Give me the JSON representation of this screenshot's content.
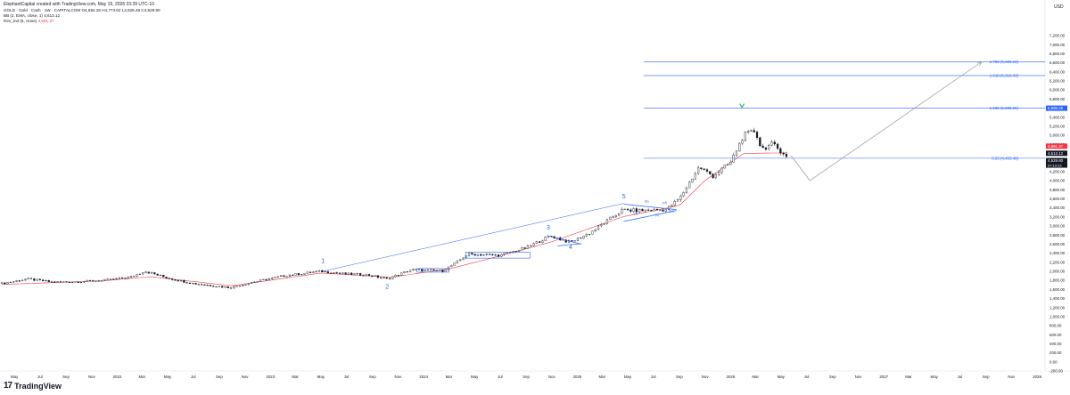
{
  "attribution": "ElephantCapital created with TradingView.com, May 19, 2026 23:39 UTC-10",
  "legend": {
    "symbol_line": "GOLD · Gold · Cash · 1W · CAPITALCOM",
    "ohlc": "O4,684.26 H4,773.62 L4,526.46 C4,529.80",
    "bb_label": "BB (2, EMA, close, 1)",
    "bb_value": "4,613.12",
    "ind_label": "Rev_Ind (5, close)",
    "ind_value": "4,691.37"
  },
  "brand": "TradingView",
  "colors": {
    "up": "#131722",
    "down": "#131722",
    "fib_line": "#2962ff",
    "ema_line": "#f23645",
    "projection_line": "#9598a1",
    "price_badge": "#131722",
    "sell_badge": "#f23645"
  },
  "chart_data": {
    "type": "candlestick",
    "title": "",
    "currency": "USD",
    "y_axis": {
      "min": -200,
      "max": 7200,
      "ticks": [
        "-200.00",
        "0.00",
        "200.00",
        "400.00",
        "600.00",
        "800.00",
        "1,000.00",
        "1,200.00",
        "1,400.00",
        "1,600.00",
        "1,800.00",
        "2,000.00",
        "2,200.00",
        "2,400.00",
        "2,600.00",
        "2,800.00",
        "3,000.00",
        "3,200.00",
        "3,400.00",
        "3,600.00",
        "3,800.00",
        "4,000.00",
        "4,200.00",
        "4,400.00",
        "4,600.00",
        "4,800.00",
        "5,000.00",
        "5,200.00",
        "5,400.00",
        "5,600.00",
        "5,800.00",
        "6,000.00",
        "6,200.00",
        "6,400.00",
        "6,600.00",
        "6,800.00",
        "7,000.00",
        "7,200.00"
      ]
    },
    "x_axis": {
      "range": [
        "2021-04-01",
        "2028-01-20"
      ],
      "ticks": [
        {
          "label": "May",
          "date": "2021-05-01"
        },
        {
          "label": "Jul",
          "date": "2021-07-01"
        },
        {
          "label": "Sep",
          "date": "2021-09-01"
        },
        {
          "label": "Nov",
          "date": "2021-11-01"
        },
        {
          "label": "2022",
          "date": "2022-01-01"
        },
        {
          "label": "Mar",
          "date": "2022-03-01"
        },
        {
          "label": "May",
          "date": "2022-05-01"
        },
        {
          "label": "Jul",
          "date": "2022-07-01"
        },
        {
          "label": "Sep",
          "date": "2022-09-01"
        },
        {
          "label": "Nov",
          "date": "2022-11-01"
        },
        {
          "label": "2023",
          "date": "2023-01-01"
        },
        {
          "label": "Mar",
          "date": "2023-03-01"
        },
        {
          "label": "May",
          "date": "2023-05-01"
        },
        {
          "label": "Jul",
          "date": "2023-07-01"
        },
        {
          "label": "Sep",
          "date": "2023-09-01"
        },
        {
          "label": "Nov",
          "date": "2023-11-01"
        },
        {
          "label": "2024",
          "date": "2024-01-01"
        },
        {
          "label": "Mar",
          "date": "2024-03-01"
        },
        {
          "label": "May",
          "date": "2024-05-01"
        },
        {
          "label": "Jul",
          "date": "2024-07-01"
        },
        {
          "label": "Sep",
          "date": "2024-09-01"
        },
        {
          "label": "Nov",
          "date": "2024-11-01"
        },
        {
          "label": "2025",
          "date": "2025-01-01"
        },
        {
          "label": "Mar",
          "date": "2025-03-01"
        },
        {
          "label": "May",
          "date": "2025-05-01"
        },
        {
          "label": "Jul",
          "date": "2025-07-01"
        },
        {
          "label": "Sep",
          "date": "2025-09-01"
        },
        {
          "label": "Nov",
          "date": "2025-11-01"
        },
        {
          "label": "2026",
          "date": "2026-01-01"
        },
        {
          "label": "Mar",
          "date": "2026-03-01"
        },
        {
          "label": "May",
          "date": "2026-05-01"
        },
        {
          "label": "Jul",
          "date": "2026-07-01"
        },
        {
          "label": "Sep",
          "date": "2026-09-01"
        },
        {
          "label": "Nov",
          "date": "2026-11-01"
        },
        {
          "label": "2027",
          "date": "2027-01-01"
        },
        {
          "label": "Mar",
          "date": "2027-03-01"
        },
        {
          "label": "May",
          "date": "2027-05-01"
        },
        {
          "label": "Jul",
          "date": "2027-07-01"
        },
        {
          "label": "Sep",
          "date": "2027-09-01"
        },
        {
          "label": "Nov",
          "date": "2027-11-01"
        },
        {
          "label": "2028",
          "date": "2028-01-01"
        }
      ]
    },
    "price_path": [
      [
        "2021-04-01",
        1730
      ],
      [
        "2021-06-01",
        1830
      ],
      [
        "2021-08-01",
        1760
      ],
      [
        "2021-10-01",
        1770
      ],
      [
        "2021-12-01",
        1800
      ],
      [
        "2022-02-01",
        1870
      ],
      [
        "2022-03-08",
        2000
      ],
      [
        "2022-05-01",
        1850
      ],
      [
        "2022-07-01",
        1730
      ],
      [
        "2022-09-26",
        1640
      ],
      [
        "2022-11-20",
        1760
      ],
      [
        "2023-02-01",
        1900
      ],
      [
        "2023-05-01",
        2000
      ],
      [
        "2023-07-01",
        1940
      ],
      [
        "2023-08-20",
        1920
      ],
      [
        "2023-10-06",
        1830
      ],
      [
        "2023-12-01",
        2030
      ],
      [
        "2024-02-15",
        2010
      ],
      [
        "2024-03-15",
        2170
      ],
      [
        "2024-04-15",
        2380
      ],
      [
        "2024-07-01",
        2350
      ],
      [
        "2024-09-01",
        2520
      ],
      [
        "2024-10-28",
        2780
      ],
      [
        "2024-12-15",
        2640
      ],
      [
        "2025-02-01",
        2850
      ],
      [
        "2025-04-18",
        3350
      ],
      [
        "2025-06-01",
        3340
      ],
      [
        "2025-08-01",
        3360
      ],
      [
        "2025-09-01",
        3600
      ],
      [
        "2025-10-18",
        4300
      ],
      [
        "2025-11-20",
        4100
      ],
      [
        "2026-01-01",
        4400
      ],
      [
        "2026-02-01",
        5000
      ],
      [
        "2026-03-01",
        5100
      ],
      [
        "2026-03-15",
        4700
      ],
      [
        "2026-04-10",
        4800
      ],
      [
        "2026-05-19",
        4530
      ]
    ],
    "ema_path": [
      [
        "2021-04-01",
        1710
      ],
      [
        "2021-12-01",
        1790
      ],
      [
        "2022-03-20",
        1880
      ],
      [
        "2022-10-01",
        1680
      ],
      [
        "2023-05-01",
        1960
      ],
      [
        "2023-10-15",
        1870
      ],
      [
        "2024-03-01",
        2050
      ],
      [
        "2024-07-01",
        2340
      ],
      [
        "2024-11-01",
        2650
      ],
      [
        "2025-04-18",
        3200
      ],
      [
        "2025-09-01",
        3450
      ],
      [
        "2025-11-01",
        4000
      ],
      [
        "2026-02-01",
        4600
      ],
      [
        "2026-05-19",
        4613
      ]
    ],
    "last_close": 4529.8,
    "candle_range": [
      "2021-04-01",
      "2026-05-19"
    ],
    "fib_levels": [
      {
        "label": "1.786 (6,625.16)",
        "value": 6625.16
      },
      {
        "label": "1.618 (6,318.43)",
        "value": 6318.43
      },
      {
        "label": "1.236 (5,598.26)",
        "value": 5598.26
      },
      {
        "label": "0.65 (4,493.48)",
        "value": 4493.48
      }
    ],
    "fib_range": [
      "2025-06-08",
      "2026-01-11"
    ],
    "price_labels": [
      {
        "text": "5,598.26",
        "value": 5598.26
      },
      {
        "text": "4,691.37",
        "value": 4691.37
      },
      {
        "text": "4,613.12",
        "value": 4613.12
      },
      {
        "text": "4,529.80",
        "value": 4529.8
      }
    ],
    "countdown": "07:19:23",
    "projection": [
      [
        "2026-05-25",
        4550
      ],
      [
        "2026-07-09",
        4000
      ],
      [
        "2027-08-22",
        6620
      ]
    ],
    "wave_counts": [
      {
        "label": "1",
        "date": "2023-05-06",
        "value": 2180
      },
      {
        "label": "2",
        "date": "2023-10-06",
        "value": 1620
      },
      {
        "label": "3",
        "date": "2024-10-24",
        "value": 2920
      },
      {
        "label": "4",
        "date": "2024-12-16",
        "value": 2490
      },
      {
        "label": "5",
        "date": "2025-04-22",
        "value": 3610
      }
    ],
    "sub_wave_labels": [
      {
        "label": "(a)",
        "date": "2025-05-20",
        "value": 3250
      },
      {
        "label": "(b)",
        "date": "2025-06-15",
        "value": 3520
      },
      {
        "label": "(c)",
        "date": "2025-07-10",
        "value": 3230
      },
      {
        "label": "(d)",
        "date": "2025-07-28",
        "value": 3490
      },
      {
        "label": "(e)",
        "date": "2025-08-14",
        "value": 3300
      }
    ],
    "consolidation_boxes": [
      {
        "from": "2023-12-15",
        "to": "2024-03-01",
        "low": 1980,
        "high": 2060
      },
      {
        "from": "2024-04-10",
        "to": "2024-09-10",
        "low": 2290,
        "high": 2420
      }
    ],
    "triangle_lines": [
      [
        [
          "2024-10-20",
          2790
        ],
        [
          "2025-01-10",
          2600
        ]
      ],
      [
        [
          "2024-11-15",
          2560
        ],
        [
          "2025-01-10",
          2610
        ]
      ],
      [
        [
          "2025-04-22",
          3480
        ],
        [
          "2025-08-25",
          3360
        ]
      ],
      [
        [
          "2025-04-22",
          3100
        ],
        [
          "2025-08-25",
          3340
        ]
      ]
    ],
    "trend_line": [
      [
        "2023-05-06",
        2000
      ],
      [
        "2025-04-22",
        3500
      ]
    ],
    "peak_marker": {
      "date": "2026-01-28",
      "value": 5598.26
    }
  }
}
